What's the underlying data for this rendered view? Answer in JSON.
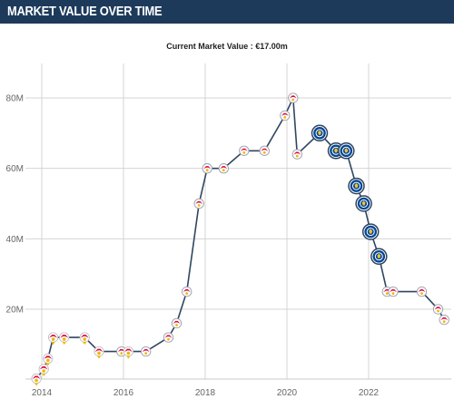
{
  "header": {
    "title": "MARKET VALUE OVER TIME"
  },
  "chart_data": {
    "type": "line",
    "subtitle_label": "Current Market Value :",
    "subtitle_value": "€17.00m",
    "xlabel": "",
    "ylabel": "",
    "ylim": [
      0,
      85
    ],
    "xlim": [
      2013.75,
      2024.0
    ],
    "grid": true,
    "y_ticks": [
      {
        "value": 20,
        "label": "20M"
      },
      {
        "value": 40,
        "label": "40M"
      },
      {
        "value": 60,
        "label": "60M"
      },
      {
        "value": 80,
        "label": "80M"
      }
    ],
    "x_ticks": [
      {
        "value": 2014,
        "label": "2014"
      },
      {
        "value": 2016,
        "label": "2016"
      },
      {
        "value": 2018,
        "label": "2018"
      },
      {
        "value": 2020,
        "label": "2020"
      },
      {
        "value": 2022,
        "label": "2022"
      }
    ],
    "series": [
      {
        "values": [
          {
            "x": 2013.87,
            "y": 0.3,
            "club": "salzburg"
          },
          {
            "x": 2014.05,
            "y": 3,
            "club": "salzburg"
          },
          {
            "x": 2014.15,
            "y": 6,
            "club": "salzburg"
          },
          {
            "x": 2014.28,
            "y": 12,
            "club": "salzburg"
          },
          {
            "x": 2014.55,
            "y": 12,
            "club": "salzburg"
          },
          {
            "x": 2015.05,
            "y": 12,
            "club": "salzburg"
          },
          {
            "x": 2015.4,
            "y": 8,
            "club": "salzburg"
          },
          {
            "x": 2015.95,
            "y": 8,
            "club": "leipzig"
          },
          {
            "x": 2016.12,
            "y": 8,
            "club": "salzburg"
          },
          {
            "x": 2016.55,
            "y": 8,
            "club": "leipzig"
          },
          {
            "x": 2017.1,
            "y": 12,
            "club": "leipzig"
          },
          {
            "x": 2017.3,
            "y": 16,
            "club": "leipzig"
          },
          {
            "x": 2017.55,
            "y": 25,
            "club": "leipzig"
          },
          {
            "x": 2017.85,
            "y": 50,
            "club": "leipzig"
          },
          {
            "x": 2018.05,
            "y": 60,
            "club": "leipzig"
          },
          {
            "x": 2018.45,
            "y": 60,
            "club": "leipzig"
          },
          {
            "x": 2018.95,
            "y": 65,
            "club": "leipzig"
          },
          {
            "x": 2019.45,
            "y": 65,
            "club": "leipzig"
          },
          {
            "x": 2019.95,
            "y": 75,
            "club": "leipzig"
          },
          {
            "x": 2020.15,
            "y": 80,
            "club": "leipzig"
          },
          {
            "x": 2020.25,
            "y": 64,
            "club": "leipzig"
          },
          {
            "x": 2020.8,
            "y": 70,
            "club": "chelsea"
          },
          {
            "x": 2021.2,
            "y": 65,
            "club": "chelsea"
          },
          {
            "x": 2021.45,
            "y": 65,
            "club": "chelsea"
          },
          {
            "x": 2021.7,
            "y": 55,
            "club": "chelsea"
          },
          {
            "x": 2021.88,
            "y": 50,
            "club": "chelsea"
          },
          {
            "x": 2022.05,
            "y": 42,
            "club": "chelsea"
          },
          {
            "x": 2022.25,
            "y": 35,
            "club": "chelsea"
          },
          {
            "x": 2022.45,
            "y": 25,
            "club": "leipzig"
          },
          {
            "x": 2022.6,
            "y": 25,
            "club": "leipzig"
          },
          {
            "x": 2023.3,
            "y": 25,
            "club": "leipzig"
          },
          {
            "x": 2023.7,
            "y": 20,
            "club": "leipzig"
          },
          {
            "x": 2023.85,
            "y": 17,
            "club": "leipzig"
          }
        ]
      }
    ]
  },
  "colors": {
    "header_bg": "#1d3a5b",
    "line": "#2f4660",
    "grid": "#d4d4d4",
    "chelsea": "#034694",
    "leipzig_red": "#dd0741",
    "salzburg_gold": "#f2b600"
  }
}
